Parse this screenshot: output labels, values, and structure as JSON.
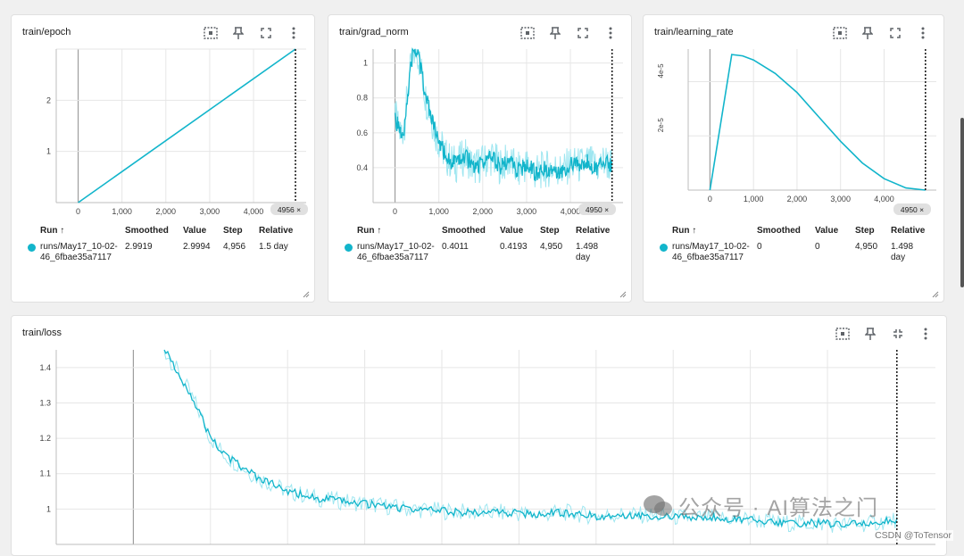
{
  "colors": {
    "series": "#12b5cb",
    "series_raw": "#9ee6f0",
    "grid": "#e6e6e6"
  },
  "cards": [
    {
      "title": "train/epoch",
      "actions": [
        "fit-domain-icon",
        "pin-icon",
        "fullscreen-icon",
        "more-vert-icon"
      ],
      "step_badge": "4956 ×",
      "table": {
        "headers": [
          "Run ↑",
          "Smoothed",
          "Value",
          "Step",
          "Relative"
        ],
        "row": {
          "run": "runs/May17_10-02-46_6fbae35a7117",
          "smoothed": "2.9919",
          "value": "2.9994",
          "step": "4,956",
          "relative": "1.5 day"
        }
      }
    },
    {
      "title": "train/grad_norm",
      "actions": [
        "fit-domain-icon",
        "pin-icon",
        "fullscreen-icon",
        "more-vert-icon"
      ],
      "step_badge": "4950 ×",
      "table": {
        "headers": [
          "Run ↑",
          "Smoothed",
          "Value",
          "Step",
          "Relative"
        ],
        "row": {
          "run": "runs/May17_10-02-46_6fbae35a7117",
          "smoothed": "0.4011",
          "value": "0.4193",
          "step": "4,950",
          "relative": "1.498 day"
        }
      }
    },
    {
      "title": "train/learning_rate",
      "actions": [
        "fit-domain-icon",
        "pin-icon",
        "fullscreen-icon",
        "more-vert-icon"
      ],
      "step_badge": "4950 ×",
      "table": {
        "headers": [
          "Run ↑",
          "Smoothed",
          "Value",
          "Step",
          "Relative"
        ],
        "row": {
          "run": "runs/May17_10-02-46_6fbae35a7117",
          "smoothed": "0",
          "value": "0",
          "step": "4,950",
          "relative": "1.498 day"
        }
      }
    },
    {
      "title": "train/loss",
      "actions": [
        "fit-domain-icon",
        "pin-icon",
        "exit-fullscreen-icon",
        "more-vert-icon"
      ]
    }
  ],
  "watermark": "公众号 · AI算法之门",
  "csdn_credit": "CSDN @ToTensor",
  "chart_data": [
    {
      "type": "line",
      "title": "train/epoch",
      "x_ticks": [
        "0",
        "1,000",
        "2,000",
        "3,000",
        "4,000"
      ],
      "y_ticks": [
        "1",
        "2"
      ],
      "xlim": [
        -500,
        5200
      ],
      "ylim": [
        0,
        3
      ],
      "series": [
        {
          "x": [
            0,
            4956
          ],
          "y": [
            0,
            2.9994
          ]
        }
      ],
      "cursor_step": 4956
    },
    {
      "type": "line",
      "title": "train/grad_norm",
      "x_ticks": [
        "0",
        "1,000",
        "2,000",
        "3,000",
        "4,000"
      ],
      "y_ticks": [
        "0.4",
        "0.6",
        "0.8",
        "1"
      ],
      "xlim": [
        -500,
        5200
      ],
      "ylim": [
        0.2,
        1.08
      ],
      "series": [
        {
          "x": [
            0,
            100,
            200,
            300,
            400,
            500,
            600,
            700,
            800,
            900,
            1000,
            1200,
            1400,
            1600,
            1800,
            2000,
            2200,
            2400,
            2600,
            2800,
            3000,
            3200,
            3400,
            3600,
            3800,
            4000,
            4200,
            4400,
            4600,
            4800,
            4950
          ],
          "y": [
            0.7,
            0.6,
            0.62,
            0.85,
            1.05,
            1.08,
            0.95,
            0.8,
            0.72,
            0.62,
            0.55,
            0.45,
            0.42,
            0.47,
            0.4,
            0.43,
            0.46,
            0.41,
            0.44,
            0.38,
            0.42,
            0.37,
            0.39,
            0.4,
            0.38,
            0.42,
            0.41,
            0.43,
            0.4,
            0.44,
            0.4011
          ]
        }
      ],
      "cursor_step": 4950
    },
    {
      "type": "line",
      "title": "train/learning_rate",
      "x_ticks": [
        "0",
        "1,000",
        "2,000",
        "3,000",
        "4,000"
      ],
      "y_tick_labels_left": [
        "4e-5",
        "2e-5"
      ],
      "xlim": [
        -500,
        5200
      ],
      "ylim": [
        0,
        5.2e-05
      ],
      "series": [
        {
          "x": [
            0,
            500,
            750,
            1000,
            1500,
            2000,
            2500,
            3000,
            3500,
            4000,
            4500,
            4950
          ],
          "y": [
            0,
            5e-05,
            4.95e-05,
            4.8e-05,
            4.3e-05,
            3.6e-05,
            2.7e-05,
            1.8e-05,
            1e-05,
            4.2e-06,
            8e-07,
            0
          ]
        }
      ],
      "cursor_step": 4950
    },
    {
      "type": "line",
      "title": "train/loss",
      "y_ticks": [
        "1",
        "1.1",
        "1.2",
        "1.3",
        "1.4"
      ],
      "ylim": [
        0.9,
        1.45
      ],
      "xlim": [
        -500,
        5200
      ],
      "series": [
        {
          "x": [
            200,
            300,
            400,
            500,
            600,
            700,
            800,
            900,
            1000,
            1200,
            1400,
            1600,
            1800,
            2000,
            2200,
            2400,
            2600,
            2800,
            3000,
            3200,
            3400,
            3600,
            3800,
            4000,
            4200,
            4400,
            4600,
            4800,
            4950
          ],
          "y": [
            1.45,
            1.38,
            1.3,
            1.2,
            1.15,
            1.12,
            1.09,
            1.07,
            1.05,
            1.03,
            1.02,
            1.01,
            1.0,
            0.995,
            0.99,
            0.99,
            0.985,
            0.99,
            0.98,
            0.985,
            0.98,
            0.975,
            0.975,
            0.97,
            0.96,
            0.96,
            0.955,
            0.96,
            0.97
          ]
        }
      ],
      "cursor_step": 4950
    }
  ]
}
